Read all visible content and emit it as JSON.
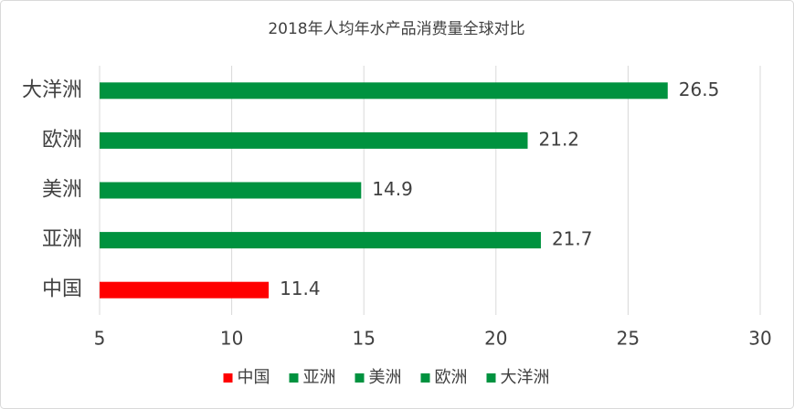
{
  "chart_data": {
    "type": "bar",
    "orientation": "horizontal",
    "title": "2018年人均年水产品消费量全球对比",
    "categories": [
      "中国",
      "亚洲",
      "美洲",
      "欧洲",
      "大洋洲"
    ],
    "values": [
      11.4,
      21.7,
      14.9,
      21.2,
      26.5
    ],
    "colors": [
      "#ff0000",
      "#00923f",
      "#00923f",
      "#00923f",
      "#00923f"
    ],
    "xlim": [
      5,
      30
    ],
    "xticks": [
      5,
      10,
      15,
      20,
      25,
      30
    ],
    "grid": true,
    "legend": "bottom"
  }
}
